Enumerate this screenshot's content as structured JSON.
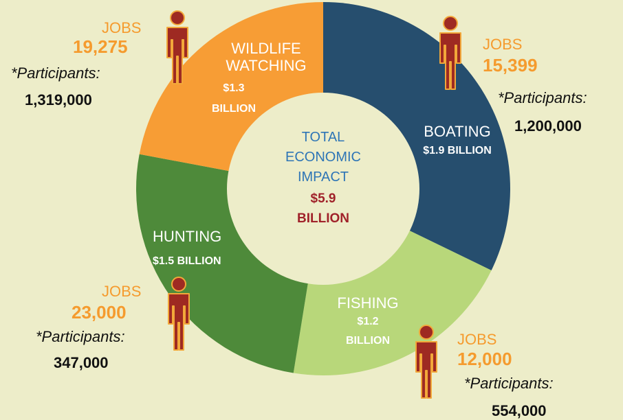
{
  "chart_data": {
    "type": "pie",
    "categories": [
      "BOATING",
      "FISHING",
      "HUNTING",
      "WILDLIFE WATCHING"
    ],
    "values": [
      1.9,
      1.2,
      1.5,
      1.3
    ],
    "value_labels": [
      "$1.9 BILLION",
      "$1.2 BILLION",
      "$1.5 BILLION",
      "$1.3 BILLION"
    ],
    "colors": [
      "#264E6E",
      "#B8D77A",
      "#4E8A3A",
      "#F79D35"
    ],
    "donut": true,
    "center": {
      "title_lines": [
        "TOTAL",
        "ECONOMIC",
        "IMPACT"
      ],
      "value_lines": [
        "$5.9",
        "BILLION"
      ]
    },
    "jobs_label": "JOBS",
    "participants_label": "*Participants:",
    "jobs": [
      15399,
      12000,
      23000,
      19275
    ],
    "participants": [
      1200000,
      554000,
      347000,
      1319000
    ]
  },
  "slices": {
    "boating": {
      "name": "BOATING",
      "value": "$1.9 BILLION"
    },
    "fishing": {
      "name": "FISHING",
      "value_lines": [
        "$1.2",
        "BILLION"
      ]
    },
    "hunting": {
      "name": "HUNTING",
      "value": "$1.5 BILLION"
    },
    "wildlife": {
      "name_lines": [
        "WILDLIFE",
        "WATCHING"
      ],
      "value_lines": [
        "$1.3",
        "BILLION"
      ]
    }
  },
  "callouts": {
    "boating": {
      "jobs_label": "JOBS",
      "jobs": "15,399",
      "participants_label": "*Participants:",
      "participants": "1,200,000"
    },
    "fishing": {
      "jobs_label": "JOBS",
      "jobs": "12,000",
      "participants_label": "*Participants:",
      "participants": "554,000"
    },
    "hunting": {
      "jobs_label": "JOBS",
      "jobs": "23,000",
      "participants_label": "*Participants:",
      "participants": "347,000"
    },
    "wildlife": {
      "jobs_label": "JOBS",
      "jobs": "19,275",
      "participants_label": "*Participants:",
      "participants": "1,319,000"
    }
  },
  "colors": {
    "background": "#EDEDC9",
    "accent_orange": "#F59B2E",
    "person_fill": "#9E2A22",
    "person_outline": "#F2A83A"
  },
  "icons": [
    "person-icon"
  ]
}
